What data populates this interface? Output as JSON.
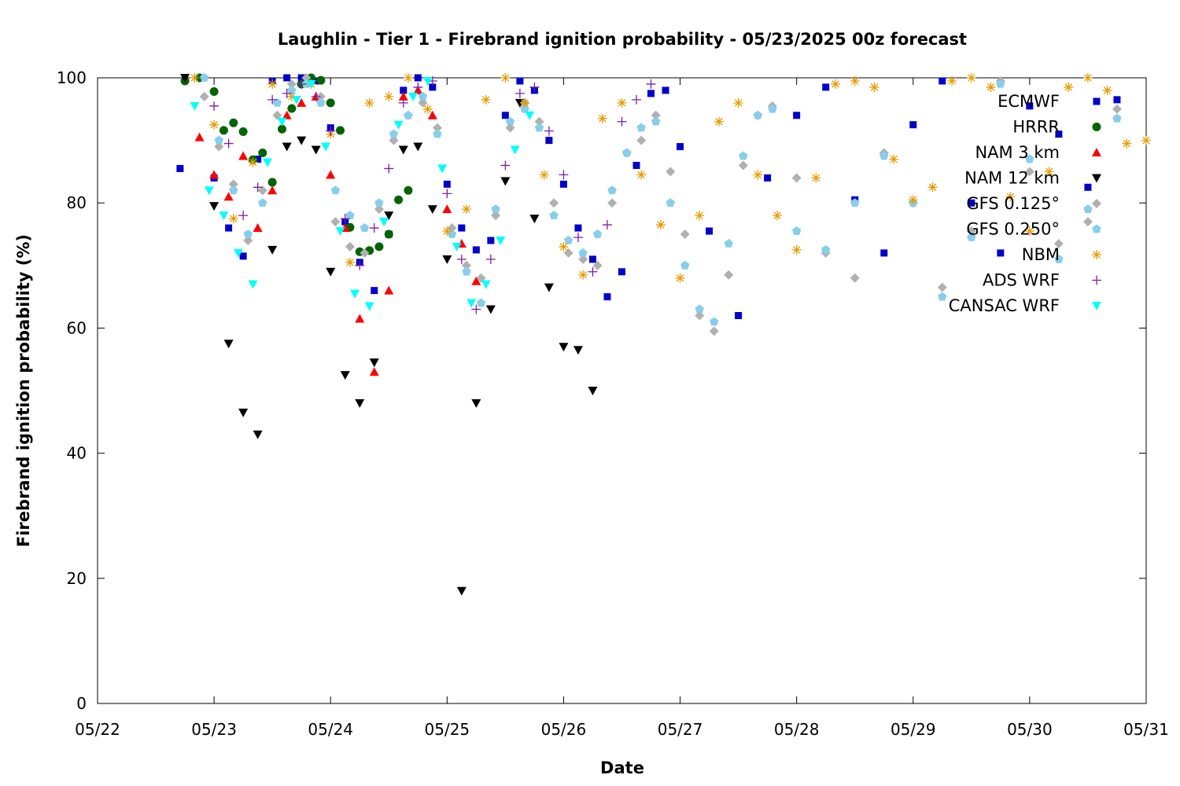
{
  "chart_data": {
    "type": "scatter",
    "title": "Laughlin - Tier 1 - Firebrand ignition probability - 05/23/2025 00z forecast",
    "xlabel": "Date",
    "ylabel": "Firebrand ignition probability (%)",
    "xlim": [
      "05/22",
      "05/31"
    ],
    "ylim": [
      0,
      100
    ],
    "x_ticks": [
      "05/22",
      "05/23",
      "05/24",
      "05/25",
      "05/26",
      "05/27",
      "05/28",
      "05/29",
      "05/30",
      "05/31"
    ],
    "y_ticks": [
      "0",
      "20",
      "40",
      "60",
      "80",
      "100"
    ],
    "grid": false,
    "legend_position": "top-right",
    "series": [
      {
        "name": "ECMWF",
        "color": "#0000cc",
        "marker": "square",
        "x": [
          "05/22 17:00",
          "05/23 00:00",
          "05/23 03:00",
          "05/23 06:00",
          "05/23 09:00",
          "05/23 12:00",
          "05/23 15:00",
          "05/23 18:00",
          "05/23 21:00",
          "05/24 00:00",
          "05/24 03:00",
          "05/24 06:00",
          "05/24 09:00",
          "05/24 12:00",
          "05/24 15:00",
          "05/24 18:00",
          "05/24 21:00",
          "05/25 00:00",
          "05/25 03:00",
          "05/25 06:00",
          "05/25 09:00",
          "05/25 12:00",
          "05/25 15:00",
          "05/25 18:00",
          "05/25 21:00",
          "05/26 00:00",
          "05/26 03:00",
          "05/26 06:00",
          "05/26 09:00",
          "05/26 12:00",
          "05/26 15:00",
          "05/26 18:00",
          "05/26 21:00",
          "05/27 00:00",
          "05/27 06:00",
          "05/27 12:00",
          "05/27 18:00",
          "05/28 00:00",
          "05/28 06:00",
          "05/28 12:00",
          "05/28 18:00",
          "05/29 00:00",
          "05/29 06:00",
          "05/29 12:00",
          "05/29 18:00",
          "05/30 00:00",
          "05/30 06:00",
          "05/30 12:00",
          "05/30 18:00"
        ],
        "y": [
          85.5,
          84,
          76,
          71.5,
          87,
          99.5,
          100,
          100,
          99.5,
          92,
          77,
          70.5,
          66,
          75,
          98,
          100,
          98.5,
          83,
          76,
          72.5,
          74,
          94,
          99.5,
          98,
          90,
          83,
          76,
          71,
          65,
          69,
          86,
          97.5,
          98,
          89,
          75.5,
          62,
          84,
          94,
          98.5,
          80.5,
          72,
          92.5,
          99.5,
          80,
          72,
          95.5,
          91,
          82.5,
          96.5
        ]
      },
      {
        "name": "HRRR",
        "color": "#006400",
        "marker": "circle",
        "x": [
          "05/22 18:00",
          "05/22 21:00",
          "05/23 00:00",
          "05/23 02:00",
          "05/23 04:00",
          "05/23 06:00",
          "05/23 08:00",
          "05/23 10:00",
          "05/23 12:00",
          "05/23 14:00",
          "05/23 16:00",
          "05/23 18:00",
          "05/23 20:00",
          "05/23 22:00",
          "05/24 00:00",
          "05/24 02:00",
          "05/24 04:00",
          "05/24 06:00",
          "05/24 08:00",
          "05/24 10:00",
          "05/24 12:00",
          "05/24 14:00",
          "05/24 16:00"
        ],
        "y": [
          99.5,
          100,
          97.8,
          91.6,
          92.8,
          91.4,
          86.9,
          88,
          83.3,
          91.8,
          95.1,
          99,
          100,
          99.6,
          96,
          91.6,
          76.1,
          72.2,
          72.4,
          73,
          75,
          80.5,
          82
        ]
      },
      {
        "name": "NAM 3 km",
        "color": "#ff0000",
        "marker": "triangle-up",
        "x": [
          "05/22 21:00",
          "05/23 00:00",
          "05/23 03:00",
          "05/23 06:00",
          "05/23 09:00",
          "05/23 12:00",
          "05/23 15:00",
          "05/23 18:00",
          "05/23 21:00",
          "05/24 00:00",
          "05/24 03:00",
          "05/24 06:00",
          "05/24 09:00",
          "05/24 12:00",
          "05/24 15:00",
          "05/24 18:00",
          "05/24 21:00",
          "05/25 00:00",
          "05/25 03:00",
          "05/25 06:00"
        ],
        "y": [
          90.5,
          84.5,
          81,
          87.5,
          76,
          82,
          94,
          96,
          97,
          84.5,
          76,
          61.5,
          53,
          66,
          97,
          98,
          94,
          79,
          73.5,
          67.5
        ]
      },
      {
        "name": "NAM 12 km",
        "color": "#000000",
        "marker": "triangle-down",
        "x": [
          "05/22 18:00",
          "05/23 00:00",
          "05/23 03:00",
          "05/23 06:00",
          "05/23 09:00",
          "05/23 12:00",
          "05/23 15:00",
          "05/23 18:00",
          "05/23 21:00",
          "05/24 00:00",
          "05/24 03:00",
          "05/24 06:00",
          "05/24 09:00",
          "05/24 12:00",
          "05/24 15:00",
          "05/24 18:00",
          "05/24 21:00",
          "05/25 00:00",
          "05/25 03:00",
          "05/25 06:00",
          "05/25 09:00",
          "05/25 12:00",
          "05/25 15:00",
          "05/25 18:00",
          "05/25 21:00",
          "05/26 00:00",
          "05/26 03:00",
          "05/26 06:00"
        ],
        "y": [
          100,
          79.5,
          57.5,
          46.5,
          43,
          72.5,
          89,
          90,
          88.5,
          69,
          52.5,
          48,
          54.5,
          78,
          88.5,
          89,
          79,
          71,
          18,
          48,
          63,
          83.5,
          96,
          77.5,
          66.5,
          57,
          56.5,
          50
        ]
      },
      {
        "name": "GFS 0.125°",
        "color": "#b0b0b0",
        "marker": "diamond",
        "x": [
          "05/22 22:00",
          "05/23 01:00",
          "05/23 04:00",
          "05/23 07:00",
          "05/23 10:00",
          "05/23 13:00",
          "05/23 16:00",
          "05/23 19:00",
          "05/23 22:00",
          "05/24 01:00",
          "05/24 04:00",
          "05/24 07:00",
          "05/24 10:00",
          "05/24 13:00",
          "05/24 16:00",
          "05/24 19:00",
          "05/24 22:00",
          "05/25 01:00",
          "05/25 04:00",
          "05/25 07:00",
          "05/25 10:00",
          "05/25 13:00",
          "05/25 16:00",
          "05/25 19:00",
          "05/25 22:00",
          "05/26 01:00",
          "05/26 04:00",
          "05/26 07:00",
          "05/26 10:00",
          "05/26 13:00",
          "05/26 16:00",
          "05/26 19:00",
          "05/26 22:00",
          "05/27 01:00",
          "05/27 04:00",
          "05/27 07:00",
          "05/27 10:00",
          "05/27 13:00",
          "05/27 16:00",
          "05/27 19:00",
          "05/28 00:00",
          "05/28 06:00",
          "05/28 12:00",
          "05/28 18:00",
          "05/29 00:00",
          "05/29 06:00",
          "05/29 12:00",
          "05/29 18:00",
          "05/30 00:00",
          "05/30 06:00",
          "05/30 12:00",
          "05/30 18:00"
        ],
        "y": [
          97,
          89,
          83,
          74,
          82,
          94,
          99,
          100,
          97,
          77,
          73,
          72,
          79,
          90,
          94,
          96,
          92,
          76,
          70,
          68,
          78,
          92,
          96,
          93,
          80,
          72,
          71,
          70,
          80,
          88,
          90,
          94,
          85,
          75,
          62,
          59.5,
          68.5,
          86,
          94,
          95.5,
          84,
          72,
          68,
          88,
          80,
          66.5,
          75.5,
          99.5,
          85,
          73.5,
          77,
          95
        ]
      },
      {
        "name": "GFS 0.250°",
        "color": "#87ceeb",
        "marker": "pentagon",
        "x": [
          "05/22 22:00",
          "05/23 01:00",
          "05/23 04:00",
          "05/23 07:00",
          "05/23 10:00",
          "05/23 13:00",
          "05/23 16:00",
          "05/23 19:00",
          "05/23 22:00",
          "05/24 01:00",
          "05/24 04:00",
          "05/24 07:00",
          "05/24 10:00",
          "05/24 13:00",
          "05/24 16:00",
          "05/24 19:00",
          "05/24 22:00",
          "05/25 01:00",
          "05/25 04:00",
          "05/25 07:00",
          "05/25 10:00",
          "05/25 13:00",
          "05/25 16:00",
          "05/25 19:00",
          "05/25 22:00",
          "05/26 01:00",
          "05/26 04:00",
          "05/26 07:00",
          "05/26 10:00",
          "05/26 13:00",
          "05/26 16:00",
          "05/26 19:00",
          "05/26 22:00",
          "05/27 01:00",
          "05/27 04:00",
          "05/27 07:00",
          "05/27 10:00",
          "05/27 13:00",
          "05/27 16:00",
          "05/27 19:00",
          "05/28 00:00",
          "05/28 06:00",
          "05/28 12:00",
          "05/28 18:00",
          "05/29 00:00",
          "05/29 06:00",
          "05/29 12:00",
          "05/29 18:00",
          "05/30 00:00",
          "05/30 06:00",
          "05/30 12:00",
          "05/30 18:00"
        ],
        "y": [
          100,
          90,
          82,
          75,
          80,
          96,
          98,
          99,
          96,
          82,
          78,
          76,
          80,
          91,
          94,
          97,
          91,
          75,
          69,
          64,
          79,
          93,
          95,
          92,
          78,
          74,
          72,
          75,
          82,
          88,
          92,
          93,
          80,
          70,
          63,
          61,
          73.5,
          87.5,
          94,
          95,
          75.5,
          72.5,
          80,
          87.5,
          80,
          65,
          74.5,
          99,
          87,
          71,
          79,
          93.5
        ]
      },
      {
        "name": "NBM",
        "color": "#e89c00",
        "marker": "asterisk",
        "x": [
          "05/22 20:00",
          "05/23 00:00",
          "05/23 04:00",
          "05/23 08:00",
          "05/23 12:00",
          "05/23 16:00",
          "05/23 20:00",
          "05/24 00:00",
          "05/24 04:00",
          "05/24 08:00",
          "05/24 12:00",
          "05/24 16:00",
          "05/24 20:00",
          "05/25 00:00",
          "05/25 04:00",
          "05/25 08:00",
          "05/25 12:00",
          "05/25 16:00",
          "05/25 20:00",
          "05/26 00:00",
          "05/26 04:00",
          "05/26 08:00",
          "05/26 12:00",
          "05/26 16:00",
          "05/26 20:00",
          "05/27 00:00",
          "05/27 04:00",
          "05/27 08:00",
          "05/27 12:00",
          "05/27 16:00",
          "05/27 20:00",
          "05/28 00:00",
          "05/28 04:00",
          "05/28 08:00",
          "05/28 12:00",
          "05/28 16:00",
          "05/28 20:00",
          "05/29 00:00",
          "05/29 04:00",
          "05/29 08:00",
          "05/29 12:00",
          "05/29 16:00",
          "05/29 20:00",
          "05/30 00:00",
          "05/30 04:00",
          "05/30 08:00",
          "05/30 12:00",
          "05/30 16:00",
          "05/30 20:00",
          "05/31 00:00"
        ],
        "y": [
          100,
          92.5,
          77.5,
          86.5,
          99,
          97,
          99,
          91,
          70.5,
          96,
          97,
          100,
          95,
          75.5,
          79,
          96.5,
          100,
          96,
          84.5,
          73,
          68.5,
          93.5,
          96,
          84.5,
          76.5,
          68,
          78,
          93,
          96,
          84.5,
          78,
          72.5,
          84,
          99,
          99.5,
          98.5,
          87,
          80.5,
          82.5,
          99.5,
          100,
          98.5,
          81,
          75.5,
          85,
          98.5,
          100,
          98,
          89.5,
          90
        ]
      },
      {
        "name": "ADS WRF",
        "color": "#7b1fa2",
        "marker": "plus",
        "x": [
          "05/23 00:00",
          "05/23 03:00",
          "05/23 06:00",
          "05/23 09:00",
          "05/23 12:00",
          "05/23 15:00",
          "05/23 18:00",
          "05/23 21:00",
          "05/24 00:00",
          "05/24 03:00",
          "05/24 06:00",
          "05/24 09:00",
          "05/24 12:00",
          "05/24 15:00",
          "05/24 18:00",
          "05/24 21:00",
          "05/25 00:00",
          "05/25 03:00",
          "05/25 06:00",
          "05/25 09:00",
          "05/25 12:00",
          "05/25 15:00",
          "05/25 18:00",
          "05/25 21:00",
          "05/26 00:00",
          "05/26 03:00",
          "05/26 06:00",
          "05/26 09:00",
          "05/26 12:00",
          "05/26 15:00",
          "05/26 18:00"
        ],
        "y": [
          95.5,
          89.5,
          78,
          82.5,
          96.5,
          97.5,
          99,
          97,
          91.5,
          77.5,
          70,
          76,
          85.5,
          96,
          98.5,
          99.5,
          81.5,
          71,
          63,
          71,
          86,
          97.5,
          98.5,
          91.5,
          84.5,
          74.5,
          69,
          76.5,
          93,
          96.5,
          99
        ]
      },
      {
        "name": "CANSAC WRF",
        "color": "#00ffff",
        "marker": "triangle-down",
        "x": [
          "05/22 20:00",
          "05/22 23:00",
          "05/23 02:00",
          "05/23 05:00",
          "05/23 08:00",
          "05/23 11:00",
          "05/23 14:00",
          "05/23 17:00",
          "05/23 20:00",
          "05/23 23:00",
          "05/24 02:00",
          "05/24 05:00",
          "05/24 08:00",
          "05/24 11:00",
          "05/24 14:00",
          "05/24 17:00",
          "05/24 20:00",
          "05/24 23:00",
          "05/25 02:00",
          "05/25 05:00",
          "05/25 08:00",
          "05/25 11:00",
          "05/25 14:00",
          "05/25 17:00"
        ],
        "y": [
          95.5,
          82,
          78,
          72,
          67,
          86.5,
          93,
          96.5,
          99,
          89,
          75.5,
          65.5,
          63.5,
          77,
          92.5,
          97,
          99.5,
          85.5,
          73,
          64,
          67,
          74,
          88.5,
          94
        ]
      }
    ]
  }
}
